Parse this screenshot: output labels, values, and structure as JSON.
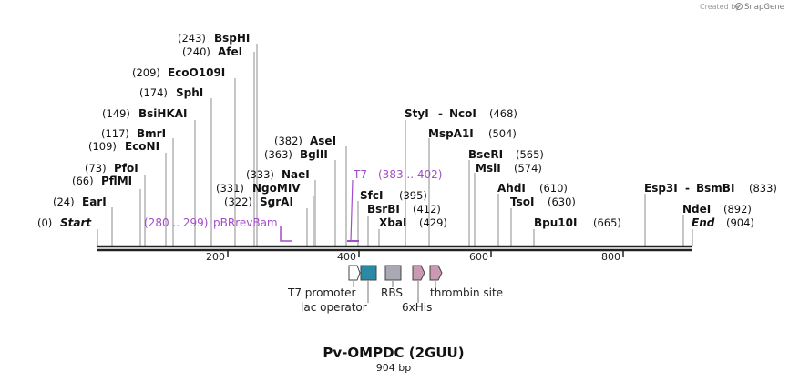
{
  "credit": {
    "text": "Created by",
    "brand": "SnapGene"
  },
  "map": {
    "title": "Pv-OMPDC (2GUU)",
    "length_label": "904 bp",
    "length": 904,
    "ticks": [
      "200",
      "400",
      "600",
      "800"
    ],
    "start_label": {
      "num": "(0)",
      "name": "Start"
    },
    "end_label": {
      "num": "(904)",
      "name": "End"
    }
  },
  "sites": [
    {
      "num": "(243)",
      "name": "BspHI"
    },
    {
      "num": "(240)",
      "name": "AfeI"
    },
    {
      "num": "(209)",
      "name": "EcoO109I"
    },
    {
      "num": "(174)",
      "name": "SphI"
    },
    {
      "num": "(149)",
      "name": "BsiHKAI"
    },
    {
      "num": "(117)",
      "name": "BmrI"
    },
    {
      "num": "(109)",
      "name": "EcoNI"
    },
    {
      "num": "(73)",
      "name": "PfoI"
    },
    {
      "num": "(66)",
      "name": "PflMI"
    },
    {
      "num": "(24)",
      "name": "EarI"
    },
    {
      "num": "(382)",
      "name": "AseI"
    },
    {
      "num": "(363)",
      "name": "BglII"
    },
    {
      "num": "(333)",
      "name": "NaeI"
    },
    {
      "num": "(331)",
      "name": "NgoMIV"
    },
    {
      "num": "(322)",
      "name": "SgrAI"
    },
    {
      "num": "(395)",
      "name": "SfcI"
    },
    {
      "num": "(412)",
      "name": "BsrBI"
    },
    {
      "num": "(429)",
      "name": "XbaI"
    },
    {
      "num": "(468)",
      "name": "StyI",
      "name2": "NcoI"
    },
    {
      "num": "(504)",
      "name": "MspA1I"
    },
    {
      "num": "(565)",
      "name": "BseRI"
    },
    {
      "num": "(574)",
      "name": "MslI"
    },
    {
      "num": "(610)",
      "name": "AhdI"
    },
    {
      "num": "(630)",
      "name": "TsoI"
    },
    {
      "num": "(665)",
      "name": "Bpu10I"
    },
    {
      "num": "(833)",
      "name": "Esp3I",
      "name2": "BsmBI"
    },
    {
      "num": "(892)",
      "name": "NdeI"
    }
  ],
  "primers": [
    {
      "name": "pBRrevBam",
      "range": "(280 .. 299)"
    },
    {
      "name": "T7",
      "range": "(383 .. 402)"
    }
  ],
  "features": [
    {
      "name": "T7 promoter",
      "color": "#ffffff"
    },
    {
      "name": "lac operator",
      "color": "#2a8aa3"
    },
    {
      "name": "RBS",
      "color": "#a8a9b5"
    },
    {
      "name": "6xHis",
      "color": "#c99ab1"
    },
    {
      "name": "thrombin site",
      "color": "#c99ab1"
    }
  ],
  "colors": {
    "primer": "#a44cc9",
    "backbone": "#222222"
  }
}
